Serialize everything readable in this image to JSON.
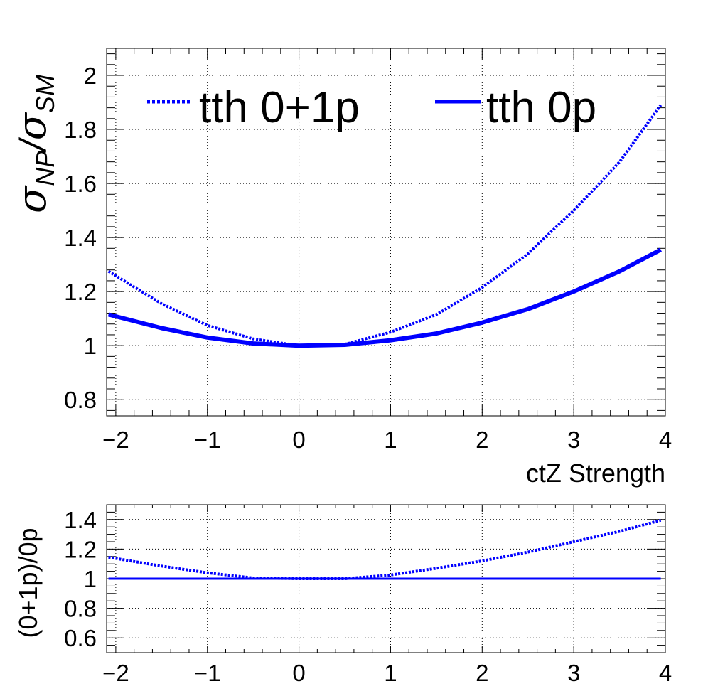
{
  "chart_data": [
    {
      "type": "line",
      "panel": "main",
      "xlabel": "ctZ Strength",
      "ylabel": {
        "symbol": "σ",
        "num_sub": "NP",
        "slash": "/",
        "den_sub": "SM"
      },
      "xlim": [
        -2.1,
        4.0
      ],
      "ylim": [
        0.74,
        2.1
      ],
      "grid": true,
      "legend_position": "top",
      "x_ticks": [
        -2,
        -1,
        0,
        1,
        2,
        3,
        4
      ],
      "x_tick_labels": [
        "−2",
        "−1",
        "0",
        "1",
        "2",
        "3",
        "4"
      ],
      "y_ticks": [
        0.8,
        1.0,
        1.2,
        1.4,
        1.6,
        1.8,
        2.0
      ],
      "y_tick_labels": [
        "0.8",
        "1",
        "1.2",
        "1.4",
        "1.6",
        "1.8",
        "2"
      ],
      "x": [
        -2.08,
        -1.5,
        -1.0,
        -0.5,
        0.0,
        0.5,
        1.0,
        1.5,
        2.0,
        2.5,
        3.0,
        3.5,
        3.95
      ],
      "series": [
        {
          "name": "tth 0+1p",
          "style": "dotted",
          "color": "#0000ff",
          "values": [
            1.275,
            1.155,
            1.075,
            1.025,
            1.0,
            1.005,
            1.05,
            1.115,
            1.215,
            1.34,
            1.5,
            1.68,
            1.89
          ]
        },
        {
          "name": "tth 0p",
          "style": "solid",
          "color": "#0000ff",
          "values": [
            1.115,
            1.065,
            1.03,
            1.008,
            1.0,
            1.003,
            1.02,
            1.045,
            1.085,
            1.135,
            1.2,
            1.275,
            1.355
          ]
        }
      ]
    },
    {
      "type": "line",
      "panel": "ratio",
      "ylabel": "(0+1p)/0p",
      "xlim": [
        -2.1,
        4.0
      ],
      "ylim": [
        0.5,
        1.5
      ],
      "grid": true,
      "x_ticks": [
        -2,
        -1,
        0,
        1,
        2,
        3,
        4
      ],
      "x_tick_labels": [
        "−2",
        "−1",
        "0",
        "1",
        "2",
        "3",
        "4"
      ],
      "y_ticks": [
        0.6,
        0.8,
        1.0,
        1.2,
        1.4
      ],
      "y_tick_labels": [
        "0.6",
        "0.8",
        "1",
        "1.2",
        "1.4"
      ],
      "x": [
        -2.08,
        -1.5,
        -1.0,
        -0.5,
        0.0,
        0.5,
        1.0,
        1.5,
        2.0,
        2.5,
        3.0,
        3.5,
        3.95
      ],
      "series": [
        {
          "name": "",
          "style": "dotted",
          "color": "#0000ff",
          "values": [
            1.145,
            1.085,
            1.04,
            1.005,
            1.0,
            1.0,
            1.025,
            1.07,
            1.12,
            1.18,
            1.25,
            1.32,
            1.395
          ]
        },
        {
          "name": "",
          "style": "solid",
          "color": "#0000ff",
          "values": [
            1.0,
            1.0,
            1.0,
            1.0,
            1.0,
            1.0,
            1.0,
            1.0,
            1.0,
            1.0,
            1.0,
            1.0,
            1.0
          ]
        }
      ]
    }
  ]
}
